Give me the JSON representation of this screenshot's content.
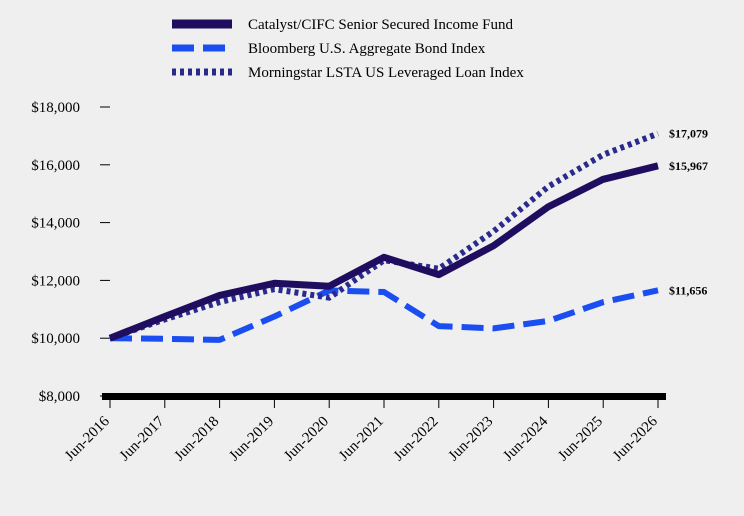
{
  "chart_data": {
    "type": "line",
    "title": "",
    "xlabel": "",
    "ylabel": "",
    "categories": [
      "Jun-2016",
      "Jun-2017",
      "Jun-2018",
      "Jun-2019",
      "Jun-2020",
      "Jun-2021",
      "Jun-2022",
      "Jun-2023",
      "Jun-2024",
      "Jun-2025",
      "Jun-2026"
    ],
    "ylim": [
      8000,
      18000
    ],
    "yticks": [
      8000,
      10000,
      12000,
      14000,
      16000,
      18000
    ],
    "ytick_labels": [
      "$8,000",
      "$10,000",
      "$12,000",
      "$14,000",
      "$16,000",
      "$18,000"
    ],
    "grid": false,
    "legend_position": "top-center",
    "series": [
      {
        "name": "Catalyst/CIFC Senior Secured Income Fund",
        "color": "#1f0e60",
        "style": "solid",
        "values": [
          10000,
          10750,
          11480,
          11900,
          11800,
          12800,
          12200,
          13200,
          14550,
          15500,
          15967
        ],
        "end_label": "$15,967"
      },
      {
        "name": "Bloomberg U.S. Aggregate Bond Index",
        "color": "#1a4ef0",
        "style": "dashed",
        "values": [
          10000,
          9980,
          9940,
          10750,
          11650,
          11600,
          10420,
          10340,
          10600,
          11250,
          11656
        ],
        "end_label": "$11,656"
      },
      {
        "name": "Morningstar LSTA US Leveraged Loan Index",
        "color": "#2a2a8c",
        "style": "dotted",
        "values": [
          10000,
          10650,
          11250,
          11700,
          11400,
          12700,
          12400,
          13700,
          15250,
          16350,
          17079
        ],
        "end_label": "$17,079"
      }
    ]
  }
}
